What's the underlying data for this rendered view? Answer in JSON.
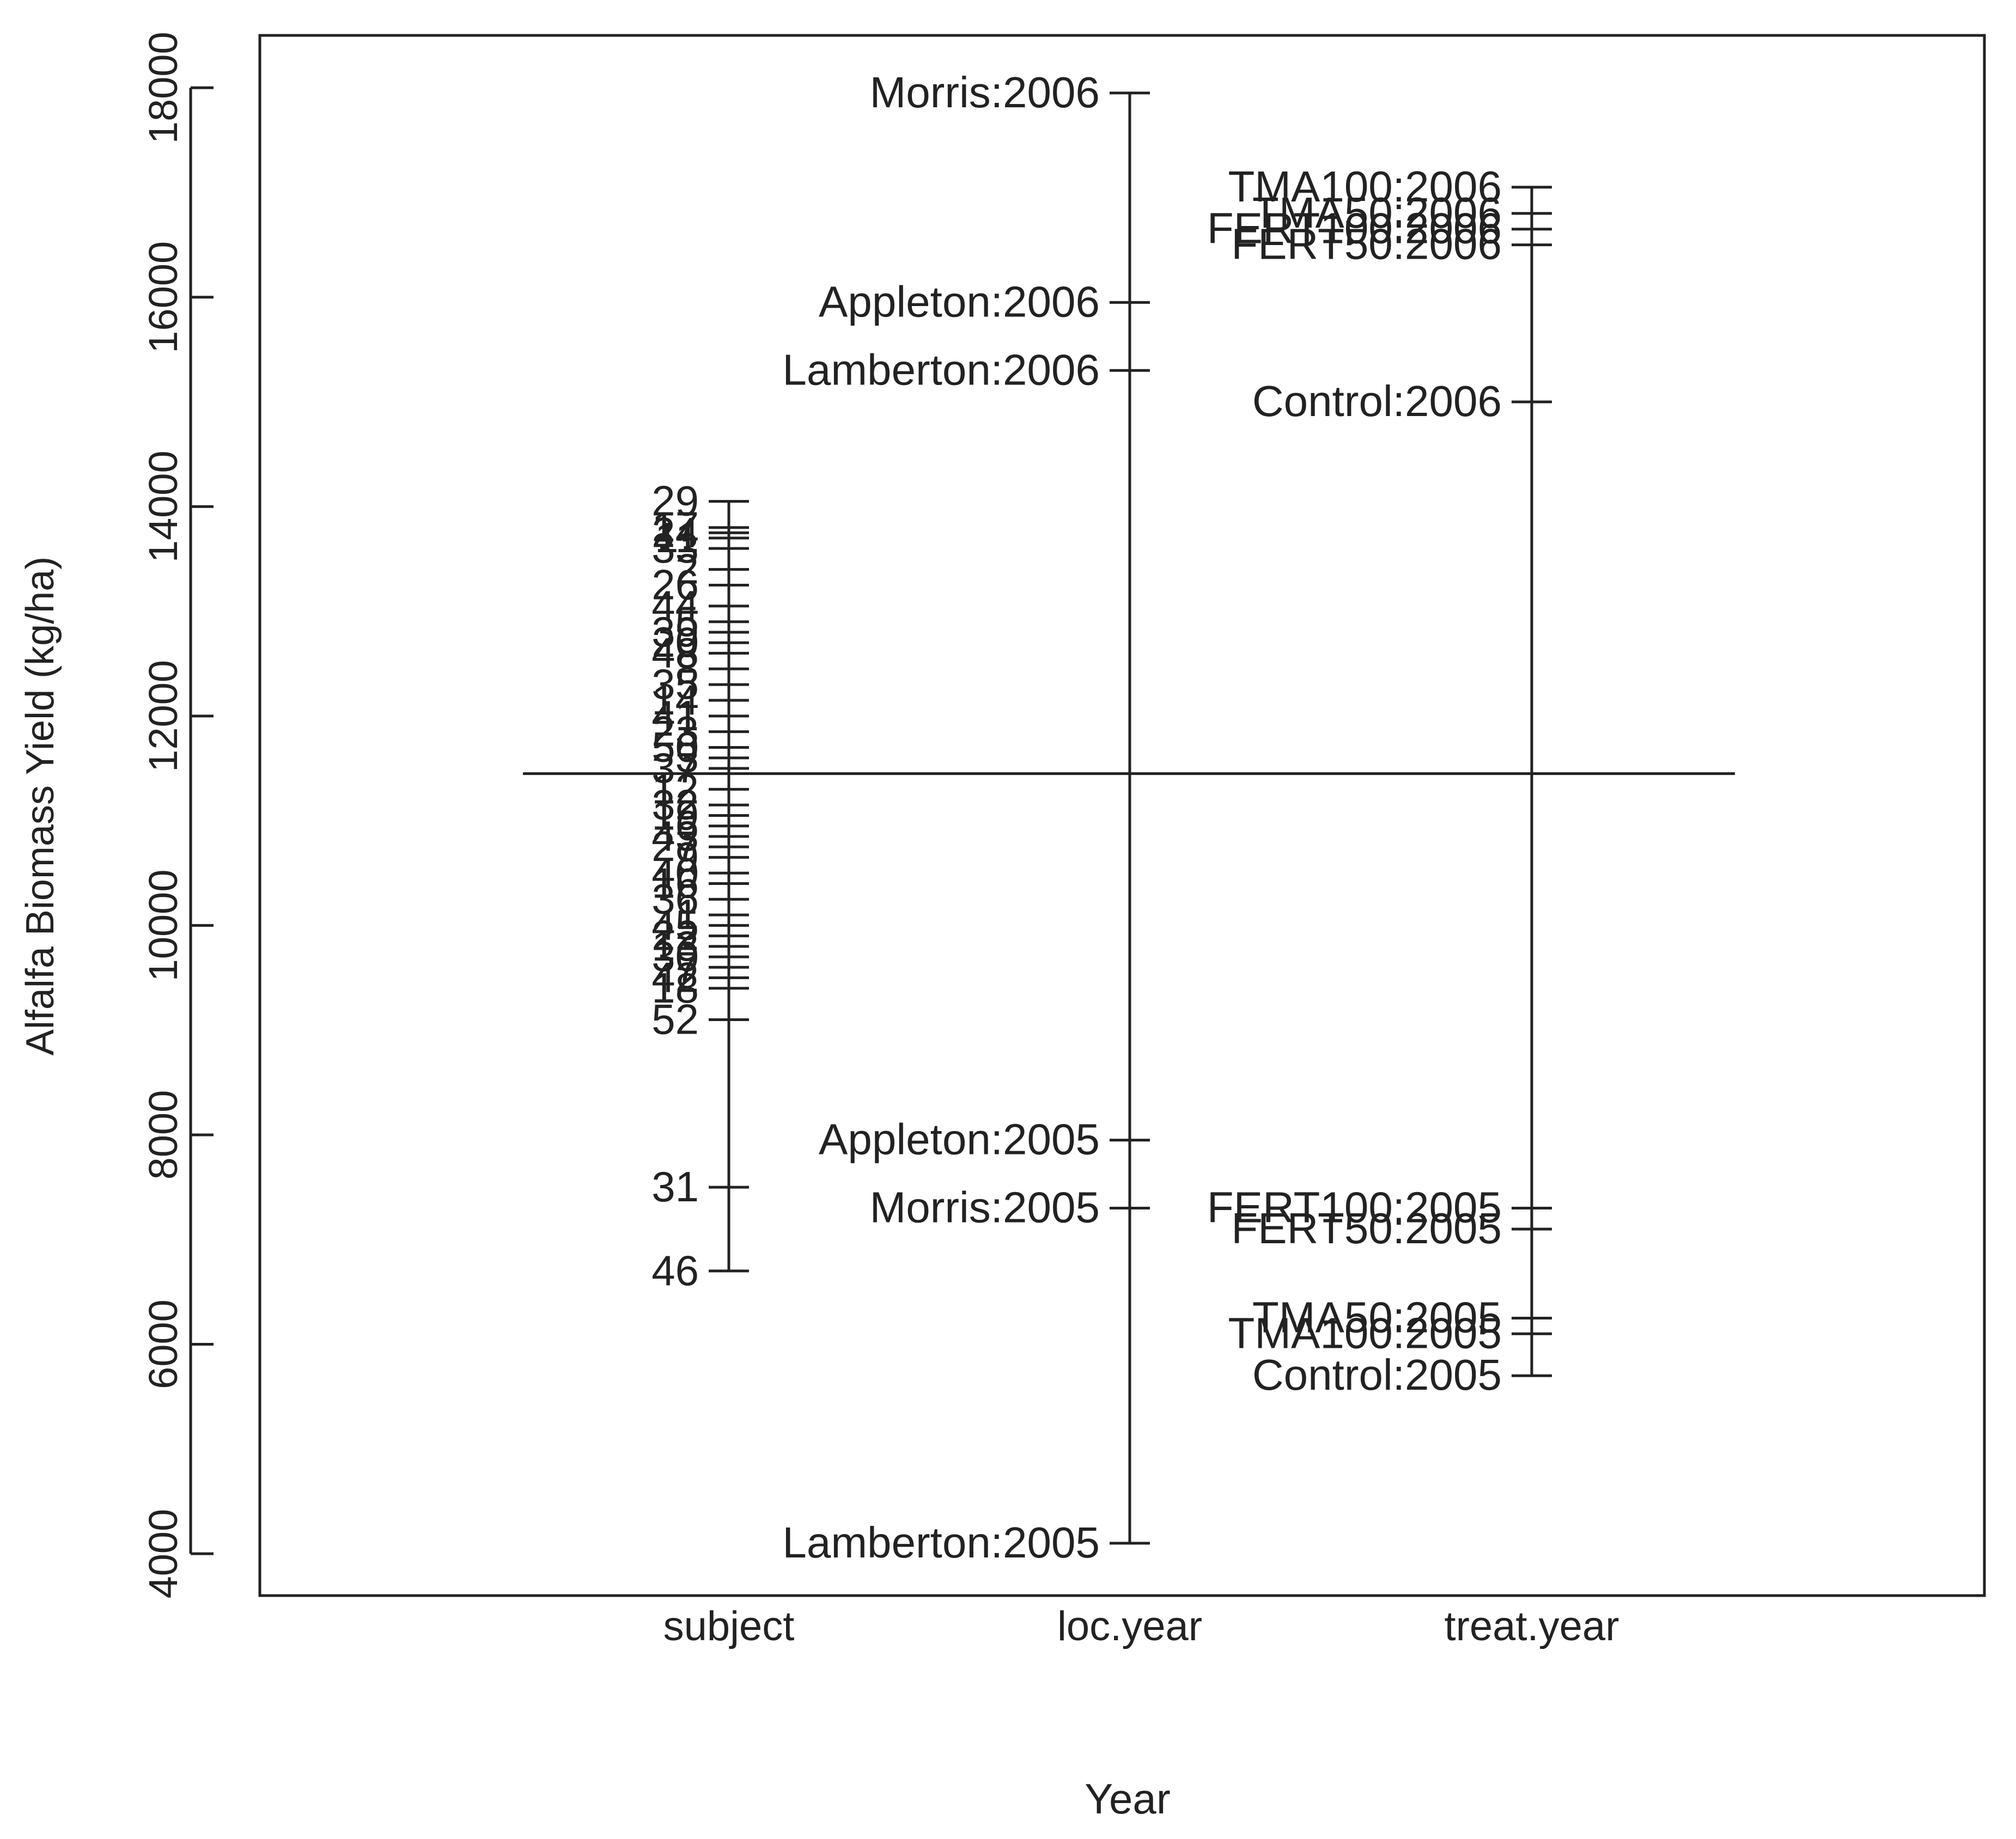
{
  "chart_data": {
    "type": "scatter",
    "title": "",
    "xlabel": "Year",
    "ylabel": "Alfalfa Biomass Yield (kg/ha)",
    "ylim": [
      3600,
      18500
    ],
    "yticks": [
      4000,
      6000,
      8000,
      10000,
      12000,
      14000,
      16000,
      18000
    ],
    "grid": false,
    "legend": "none",
    "grand_mean": 11450,
    "categories": [
      "subject",
      "loc.year",
      "treat.year"
    ],
    "series": [
      {
        "category": "subject",
        "points": [
          {
            "label": "29",
            "y": 14050
          },
          {
            "label": "17",
            "y": 13800
          },
          {
            "label": "24",
            "y": 13750
          },
          {
            "label": "11",
            "y": 13700
          },
          {
            "label": "33",
            "y": 13600
          },
          {
            "label": "2",
            "y": 13400
          },
          {
            "label": "26",
            "y": 13250
          },
          {
            "label": "44",
            "y": 13050
          },
          {
            "label": "5",
            "y": 12900
          },
          {
            "label": "39",
            "y": 12800
          },
          {
            "label": "20",
            "y": 12700
          },
          {
            "label": "48",
            "y": 12600
          },
          {
            "label": "8",
            "y": 12450
          },
          {
            "label": "35",
            "y": 12300
          },
          {
            "label": "14",
            "y": 12150
          },
          {
            "label": "41",
            "y": 12000
          },
          {
            "label": "23",
            "y": 11850
          },
          {
            "label": "50",
            "y": 11700
          },
          {
            "label": "3",
            "y": 11600
          },
          {
            "label": "37",
            "y": 11500
          },
          {
            "label": "12",
            "y": 11300
          },
          {
            "label": "32",
            "y": 11150
          },
          {
            "label": "19",
            "y": 11050
          },
          {
            "label": "6",
            "y": 10950
          },
          {
            "label": "43",
            "y": 10850
          },
          {
            "label": "27",
            "y": 10750
          },
          {
            "label": "9",
            "y": 10650
          },
          {
            "label": "40",
            "y": 10500
          },
          {
            "label": "16",
            "y": 10400
          },
          {
            "label": "36",
            "y": 10250
          },
          {
            "label": "1",
            "y": 10100
          },
          {
            "label": "45",
            "y": 10000
          },
          {
            "label": "22",
            "y": 9900
          },
          {
            "label": "13",
            "y": 9800
          },
          {
            "label": "30",
            "y": 9700
          },
          {
            "label": "7",
            "y": 9600
          },
          {
            "label": "42",
            "y": 9500
          },
          {
            "label": "18",
            "y": 9400
          },
          {
            "label": "52",
            "y": 9100
          },
          {
            "label": "31",
            "y": 7500
          },
          {
            "label": "46",
            "y": 6700
          }
        ]
      },
      {
        "category": "loc.year",
        "points": [
          {
            "label": "Morris:2006",
            "y": 17950
          },
          {
            "label": "Appleton:2006",
            "y": 15950
          },
          {
            "label": "Lamberton:2006",
            "y": 15300
          },
          {
            "label": "Appleton:2005",
            "y": 7950
          },
          {
            "label": "Morris:2005",
            "y": 7300
          },
          {
            "label": "Lamberton:2005",
            "y": 4100
          }
        ]
      },
      {
        "category": "treat.year",
        "points": [
          {
            "label": "TMA100:2006",
            "y": 17050
          },
          {
            "label": "TMA50:2006",
            "y": 16800
          },
          {
            "label": "FERT100:2006",
            "y": 16650
          },
          {
            "label": "FERT50:2006",
            "y": 16500
          },
          {
            "label": "Control:2006",
            "y": 15000
          },
          {
            "label": "FERT100:2005",
            "y": 7300
          },
          {
            "label": "FERT50:2005",
            "y": 7100
          },
          {
            "label": "TMA50:2005",
            "y": 6250
          },
          {
            "label": "TMA100:2005",
            "y": 6100
          },
          {
            "label": "Control:2005",
            "y": 5700
          }
        ]
      }
    ]
  }
}
